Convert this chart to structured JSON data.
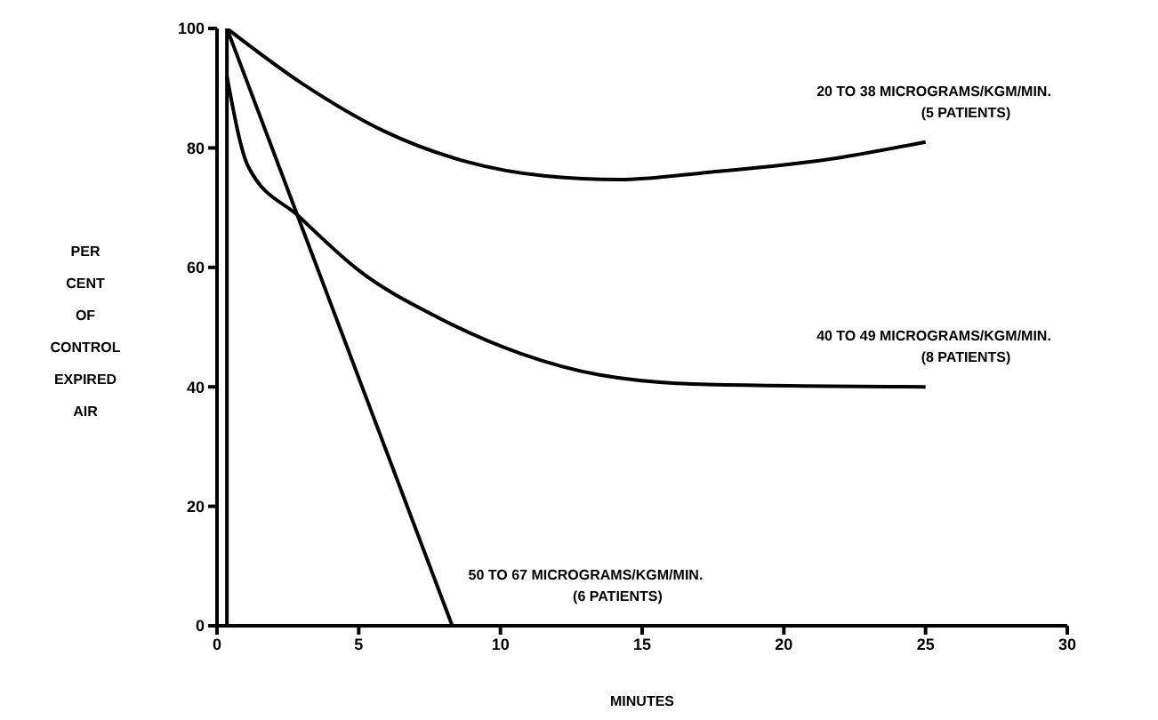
{
  "chart_data": {
    "type": "line",
    "xlabel": "MINUTES",
    "ylabel": "PER\nCENT\nOF\nCONTROL\nEXPIRED\nAIR",
    "xlim": [
      0,
      30
    ],
    "xticks": [
      0,
      5,
      10,
      15,
      20,
      25,
      30
    ],
    "ylim": [
      0,
      100
    ],
    "yticks": [
      0,
      20,
      40,
      60,
      80,
      100
    ],
    "marker": "none",
    "line_style": "solid",
    "series": [
      {
        "name": "20 TO 38 MICROGRAMS/KGM/MIN.\n(5 PATIENTS)",
        "color": "#000000",
        "x": [
          0.35,
          3.0,
          5.9,
          8.8,
          11.6,
          14.2,
          17.3,
          22,
          25
        ],
        "values": [
          100,
          90.8,
          82.8,
          77.7,
          75.3,
          74.7,
          75.9,
          78.4,
          81
        ]
      },
      {
        "name": "40 TO 49 MICROGRAMS/KGM/MIN.\n(8 PATIENTS)",
        "color": "#000000",
        "x": [
          0.35,
          1.1,
          2.9,
          5.0,
          7.8,
          10.7,
          13.5,
          17.3,
          25
        ],
        "values": [
          92,
          76.9,
          68.5,
          59.5,
          51.6,
          45.6,
          42,
          40.4,
          40
        ]
      },
      {
        "name": "50 TO 67 MICROGRAMS/KGM/MIN.\n(6 PATIENTS)",
        "color": "#000000",
        "x": [
          0.35,
          8.3
        ],
        "values": [
          100,
          0
        ]
      },
      {
        "color": "#000000",
        "x": [
          0.35,
          0.35
        ],
        "values": [
          0,
          100
        ]
      }
    ]
  }
}
